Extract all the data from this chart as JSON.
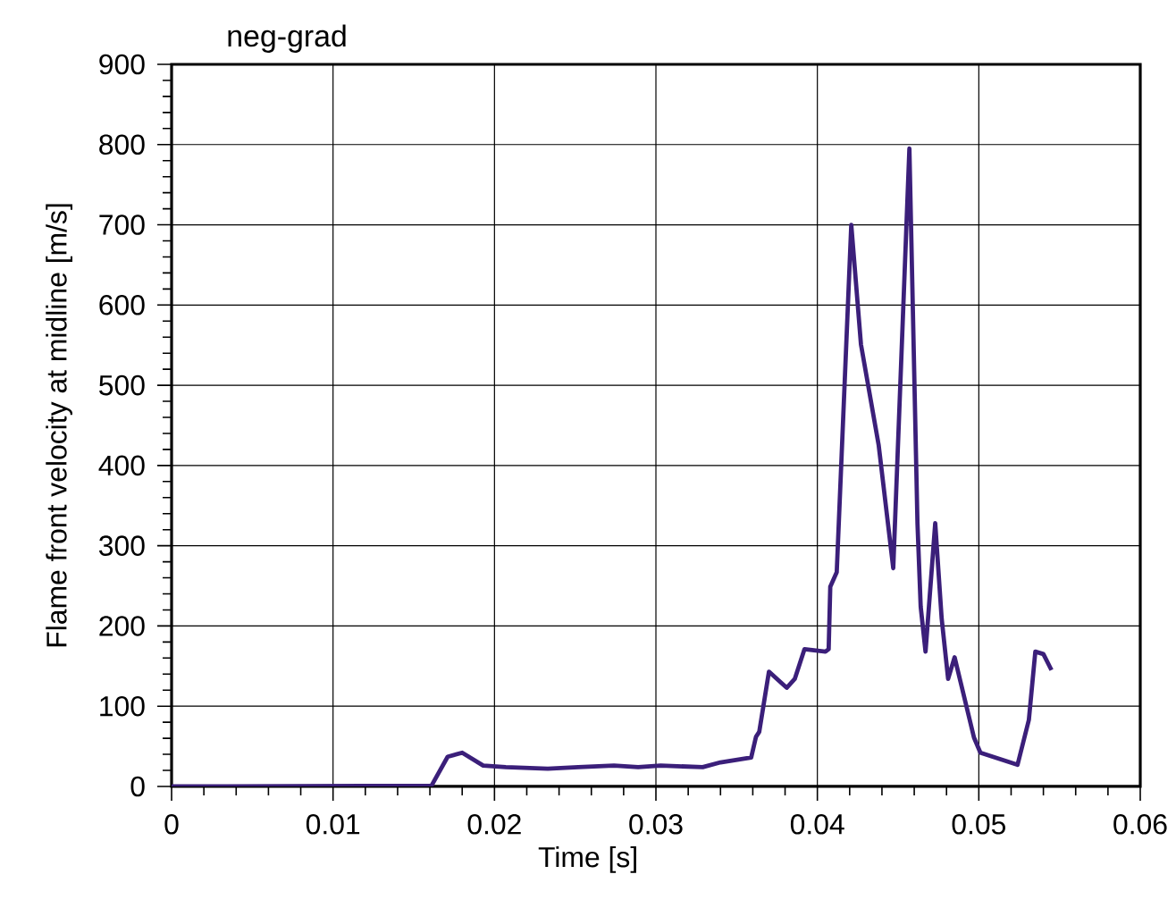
{
  "chart_data": {
    "type": "line",
    "title": "neg-grad",
    "xlabel": "Time [s]",
    "ylabel": "Flame front velocity at midline [m/s]",
    "x": [
      0,
      0.0161,
      0.0171,
      0.018,
      0.0193,
      0.0207,
      0.0233,
      0.0252,
      0.0274,
      0.0289,
      0.0303,
      0.0329,
      0.034,
      0.0359,
      0.0362,
      0.0364,
      0.037,
      0.0381,
      0.0386,
      0.0392,
      0.0405,
      0.0407,
      0.0408,
      0.0412,
      0.0421,
      0.0427,
      0.0438,
      0.0447,
      0.0457,
      0.0462,
      0.0464,
      0.0467,
      0.0473,
      0.0477,
      0.0481,
      0.0485,
      0.0497,
      0.0501,
      0.0524,
      0.0531,
      0.0535,
      0.054,
      0.0545
    ],
    "series": [
      {
        "color": "#3b1f7a",
        "values": [
          0,
          1,
          37,
          42,
          26,
          24,
          22,
          24,
          26,
          24,
          26,
          24,
          30,
          36,
          62,
          68,
          143,
          123,
          134,
          171,
          168,
          171,
          249,
          267,
          700,
          551,
          425,
          272,
          795,
          328,
          224,
          168,
          328,
          209,
          134,
          161,
          61,
          42,
          27,
          83,
          168,
          165,
          145
        ]
      }
    ],
    "xlim": [
      0,
      0.06
    ],
    "ylim": [
      0,
      900
    ],
    "xticks": [
      0,
      0.01,
      0.02,
      0.03,
      0.04,
      0.05,
      0.06
    ],
    "yticks": [
      0,
      100,
      200,
      300,
      400,
      500,
      600,
      700,
      800,
      900
    ],
    "grid": true,
    "legend": false,
    "marker": "none",
    "line_style": "solid"
  }
}
